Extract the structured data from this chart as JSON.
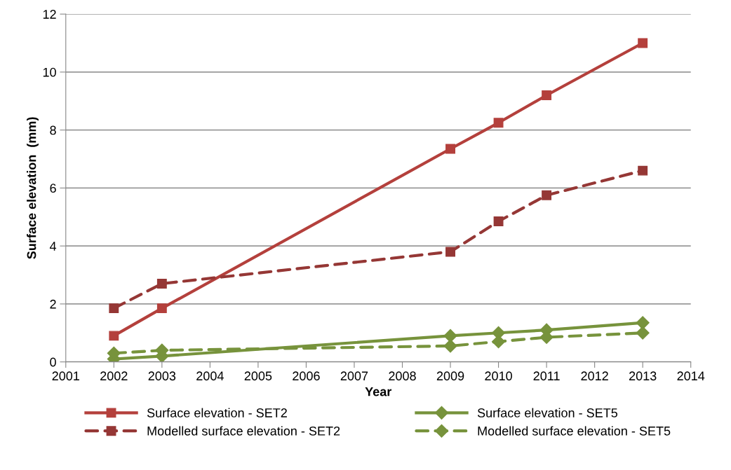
{
  "chart_data": {
    "type": "line",
    "xlabel": "Year",
    "ylabel": "Surface elevation  (mm)",
    "x": [
      2002,
      2003,
      2009,
      2010,
      2011,
      2013
    ],
    "series": [
      {
        "name": "Surface elevation - SET2",
        "color": "#b4403c",
        "marker": "square",
        "line_style": "solid",
        "values": [
          0.9,
          1.85,
          7.35,
          8.25,
          9.2,
          11.0
        ]
      },
      {
        "name": "Modelled surface elevation - SET2",
        "color": "#953735",
        "marker": "square",
        "line_style": "dashed",
        "values": [
          1.85,
          2.7,
          3.8,
          4.85,
          5.75,
          6.6
        ]
      },
      {
        "name": "Surface elevation - SET5",
        "color": "#77933c",
        "marker": "diamond",
        "line_style": "solid",
        "values": [
          0.1,
          0.2,
          0.9,
          1.0,
          1.1,
          1.35
        ]
      },
      {
        "name": "Modelled surface elevation - SET5",
        "color": "#77933c",
        "marker": "diamond",
        "line_style": "dashed",
        "values": [
          0.3,
          0.4,
          0.55,
          0.7,
          0.85,
          1.0
        ]
      }
    ],
    "xlim": [
      2001,
      2014
    ],
    "xticks": [
      2001,
      2002,
      2003,
      2004,
      2005,
      2006,
      2007,
      2008,
      2009,
      2010,
      2011,
      2012,
      2013,
      2014
    ],
    "ylim": [
      0,
      12
    ],
    "yticks": [
      0,
      2,
      4,
      6,
      8,
      10,
      12
    ],
    "grid": "y",
    "legend": "bottom"
  }
}
